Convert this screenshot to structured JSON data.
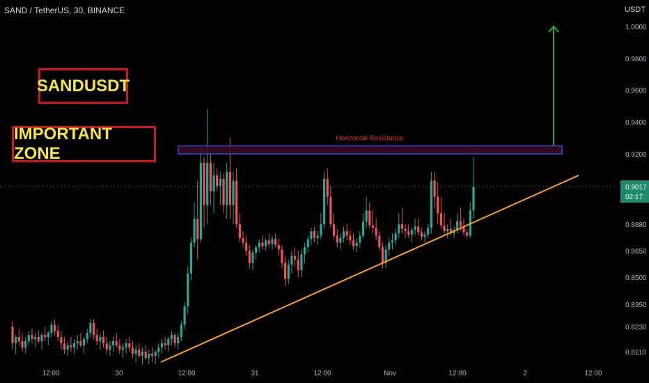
{
  "header": {
    "title": "SAND / TetherUS, 30, BINANCE"
  },
  "labels": {
    "box1": "SANDUSDT",
    "box2": "IMPORTANT ZONE"
  },
  "colors": {
    "background": "#000000",
    "up": "#26a69a",
    "down": "#ef5350",
    "trendline": "#ff9f1c",
    "resistance_border": "#3a4bd8",
    "resistance_fill": "#3a0c22",
    "resistance_text": "#e03030",
    "arrow": "#19c81e",
    "label_border": "#d4141b",
    "label_text": "#f4e542",
    "price_badge": "#1e8a6c"
  },
  "chart_data": {
    "type": "candlestick",
    "title": "SAND / TetherUS, 30, BINANCE",
    "ylabel": "USDT",
    "yticks": [
      "1.0000",
      "0.9800",
      "0.9600",
      "0.9400",
      "0.9200",
      "0.9017",
      "0.8880",
      "0.8650",
      "0.8500",
      "0.8350",
      "0.8230",
      "0.8110"
    ],
    "xticks": [
      "12:00",
      "30",
      "12:00",
      "31",
      "12:00",
      "Nov",
      "12:00",
      "2",
      "12:00"
    ],
    "current_price": {
      "value": "0.9017",
      "countdown": "02:17"
    },
    "annotations": {
      "resistance_zone": {
        "label": "Horizontal Resistance",
        "low": 0.92,
        "high": 0.925
      },
      "trendline": {
        "from": 0.806,
        "to": 0.908
      },
      "arrow_target": 1.0
    },
    "candles": [
      [
        0.823,
        0.826,
        0.812,
        0.815
      ],
      [
        0.815,
        0.819,
        0.81,
        0.818
      ],
      [
        0.818,
        0.822,
        0.814,
        0.816
      ],
      [
        0.816,
        0.82,
        0.811,
        0.813
      ],
      [
        0.813,
        0.818,
        0.81,
        0.816
      ],
      [
        0.816,
        0.821,
        0.814,
        0.819
      ],
      [
        0.819,
        0.822,
        0.815,
        0.817
      ],
      [
        0.817,
        0.82,
        0.813,
        0.818
      ],
      [
        0.818,
        0.821,
        0.815,
        0.816
      ],
      [
        0.816,
        0.82,
        0.812,
        0.819
      ],
      [
        0.819,
        0.823,
        0.816,
        0.818
      ],
      [
        0.818,
        0.821,
        0.814,
        0.82
      ],
      [
        0.82,
        0.826,
        0.818,
        0.824
      ],
      [
        0.824,
        0.827,
        0.819,
        0.821
      ],
      [
        0.821,
        0.824,
        0.816,
        0.818
      ],
      [
        0.818,
        0.821,
        0.812,
        0.815
      ],
      [
        0.815,
        0.818,
        0.81,
        0.812
      ],
      [
        0.812,
        0.816,
        0.809,
        0.814
      ],
      [
        0.814,
        0.818,
        0.811,
        0.813
      ],
      [
        0.813,
        0.817,
        0.81,
        0.815
      ],
      [
        0.815,
        0.819,
        0.812,
        0.816
      ],
      [
        0.816,
        0.82,
        0.813,
        0.814
      ],
      [
        0.814,
        0.818,
        0.81,
        0.817
      ],
      [
        0.817,
        0.822,
        0.815,
        0.82
      ],
      [
        0.82,
        0.827,
        0.818,
        0.825
      ],
      [
        0.825,
        0.827,
        0.817,
        0.819
      ],
      [
        0.819,
        0.822,
        0.814,
        0.816
      ],
      [
        0.816,
        0.82,
        0.812,
        0.818
      ],
      [
        0.818,
        0.821,
        0.813,
        0.815
      ],
      [
        0.815,
        0.818,
        0.81,
        0.812
      ],
      [
        0.812,
        0.816,
        0.809,
        0.814
      ],
      [
        0.814,
        0.818,
        0.811,
        0.816
      ],
      [
        0.816,
        0.82,
        0.813,
        0.814
      ],
      [
        0.814,
        0.817,
        0.81,
        0.812
      ],
      [
        0.812,
        0.815,
        0.808,
        0.813
      ],
      [
        0.813,
        0.817,
        0.81,
        0.815
      ],
      [
        0.815,
        0.818,
        0.811,
        0.813
      ],
      [
        0.813,
        0.816,
        0.808,
        0.81
      ],
      [
        0.81,
        0.814,
        0.806,
        0.812
      ],
      [
        0.812,
        0.815,
        0.808,
        0.809
      ],
      [
        0.809,
        0.813,
        0.805,
        0.811
      ],
      [
        0.811,
        0.814,
        0.807,
        0.808
      ],
      [
        0.808,
        0.812,
        0.805,
        0.81
      ],
      [
        0.81,
        0.813,
        0.806,
        0.809
      ],
      [
        0.809,
        0.812,
        0.805,
        0.811
      ],
      [
        0.811,
        0.815,
        0.808,
        0.813
      ],
      [
        0.813,
        0.817,
        0.81,
        0.815
      ],
      [
        0.815,
        0.818,
        0.812,
        0.814
      ],
      [
        0.814,
        0.818,
        0.811,
        0.817
      ],
      [
        0.817,
        0.821,
        0.814,
        0.819
      ],
      [
        0.819,
        0.82,
        0.813,
        0.815
      ],
      [
        0.815,
        0.82,
        0.812,
        0.818
      ],
      [
        0.818,
        0.826,
        0.816,
        0.824
      ],
      [
        0.824,
        0.836,
        0.822,
        0.834
      ],
      [
        0.834,
        0.856,
        0.83,
        0.852
      ],
      [
        0.852,
        0.876,
        0.848,
        0.872
      ],
      [
        0.872,
        0.896,
        0.868,
        0.89
      ],
      [
        0.89,
        0.905,
        0.86,
        0.875
      ],
      [
        0.875,
        0.925,
        0.872,
        0.915
      ],
      [
        0.915,
        0.918,
        0.885,
        0.895
      ],
      [
        0.895,
        0.948,
        0.888,
        0.915
      ],
      [
        0.915,
        0.92,
        0.895,
        0.9
      ],
      [
        0.9,
        0.915,
        0.892,
        0.908
      ],
      [
        0.908,
        0.912,
        0.9,
        0.902
      ],
      [
        0.902,
        0.91,
        0.895,
        0.906
      ],
      [
        0.906,
        0.909,
        0.892,
        0.895
      ],
      [
        0.895,
        0.915,
        0.89,
        0.91
      ],
      [
        0.91,
        0.93,
        0.89,
        0.895
      ],
      [
        0.895,
        0.91,
        0.888,
        0.905
      ],
      [
        0.905,
        0.912,
        0.885,
        0.888
      ],
      [
        0.888,
        0.892,
        0.872,
        0.876
      ],
      [
        0.876,
        0.882,
        0.868,
        0.872
      ],
      [
        0.872,
        0.878,
        0.862,
        0.865
      ],
      [
        0.865,
        0.87,
        0.855,
        0.858
      ],
      [
        0.858,
        0.866,
        0.854,
        0.864
      ],
      [
        0.864,
        0.87,
        0.86,
        0.868
      ],
      [
        0.868,
        0.875,
        0.864,
        0.872
      ],
      [
        0.872,
        0.878,
        0.866,
        0.869
      ],
      [
        0.869,
        0.876,
        0.865,
        0.874
      ],
      [
        0.874,
        0.88,
        0.868,
        0.871
      ],
      [
        0.871,
        0.878,
        0.866,
        0.875
      ],
      [
        0.875,
        0.88,
        0.868,
        0.87
      ],
      [
        0.87,
        0.876,
        0.862,
        0.866
      ],
      [
        0.866,
        0.87,
        0.855,
        0.858
      ],
      [
        0.858,
        0.862,
        0.845,
        0.849
      ],
      [
        0.849,
        0.86,
        0.846,
        0.857
      ],
      [
        0.857,
        0.865,
        0.852,
        0.862
      ],
      [
        0.862,
        0.868,
        0.856,
        0.86
      ],
      [
        0.86,
        0.865,
        0.85,
        0.854
      ],
      [
        0.854,
        0.866,
        0.85,
        0.863
      ],
      [
        0.863,
        0.872,
        0.858,
        0.868
      ],
      [
        0.868,
        0.878,
        0.864,
        0.875
      ],
      [
        0.875,
        0.885,
        0.87,
        0.882
      ],
      [
        0.882,
        0.886,
        0.872,
        0.876
      ],
      [
        0.876,
        0.882,
        0.87,
        0.878
      ],
      [
        0.878,
        0.892,
        0.875,
        0.888
      ],
      [
        0.888,
        0.91,
        0.884,
        0.906
      ],
      [
        0.906,
        0.912,
        0.895,
        0.898
      ],
      [
        0.898,
        0.902,
        0.885,
        0.888
      ],
      [
        0.888,
        0.892,
        0.875,
        0.878
      ],
      [
        0.878,
        0.884,
        0.868,
        0.872
      ],
      [
        0.872,
        0.88,
        0.866,
        0.876
      ],
      [
        0.876,
        0.886,
        0.872,
        0.882
      ],
      [
        0.882,
        0.888,
        0.874,
        0.878
      ],
      [
        0.878,
        0.883,
        0.87,
        0.874
      ],
      [
        0.874,
        0.88,
        0.866,
        0.869
      ],
      [
        0.869,
        0.876,
        0.864,
        0.872
      ],
      [
        0.872,
        0.882,
        0.868,
        0.878
      ],
      [
        0.878,
        0.892,
        0.876,
        0.889
      ],
      [
        0.889,
        0.898,
        0.884,
        0.893
      ],
      [
        0.893,
        0.896,
        0.884,
        0.887
      ],
      [
        0.887,
        0.893,
        0.88,
        0.885
      ],
      [
        0.885,
        0.89,
        0.874,
        0.878
      ],
      [
        0.878,
        0.882,
        0.865,
        0.868
      ],
      [
        0.868,
        0.872,
        0.855,
        0.858
      ],
      [
        0.858,
        0.87,
        0.855,
        0.866
      ],
      [
        0.866,
        0.876,
        0.862,
        0.872
      ],
      [
        0.872,
        0.88,
        0.866,
        0.874
      ],
      [
        0.874,
        0.884,
        0.87,
        0.88
      ],
      [
        0.88,
        0.892,
        0.876,
        0.888
      ],
      [
        0.888,
        0.894,
        0.88,
        0.884
      ],
      [
        0.884,
        0.888,
        0.876,
        0.882
      ],
      [
        0.882,
        0.888,
        0.876,
        0.879
      ],
      [
        0.879,
        0.885,
        0.872,
        0.883
      ],
      [
        0.883,
        0.89,
        0.878,
        0.886
      ],
      [
        0.886,
        0.89,
        0.878,
        0.881
      ],
      [
        0.881,
        0.885,
        0.874,
        0.877
      ],
      [
        0.877,
        0.882,
        0.872,
        0.879
      ],
      [
        0.879,
        0.888,
        0.876,
        0.885
      ],
      [
        0.885,
        0.91,
        0.88,
        0.905
      ],
      [
        0.905,
        0.91,
        0.894,
        0.898
      ],
      [
        0.898,
        0.904,
        0.888,
        0.892
      ],
      [
        0.892,
        0.898,
        0.884,
        0.887
      ],
      [
        0.887,
        0.892,
        0.878,
        0.882
      ],
      [
        0.882,
        0.888,
        0.876,
        0.884
      ],
      [
        0.884,
        0.89,
        0.878,
        0.88
      ],
      [
        0.88,
        0.886,
        0.876,
        0.883
      ],
      [
        0.883,
        0.892,
        0.88,
        0.889
      ],
      [
        0.889,
        0.894,
        0.882,
        0.886
      ],
      [
        0.886,
        0.89,
        0.878,
        0.881
      ],
      [
        0.881,
        0.884,
        0.876,
        0.878
      ],
      [
        0.878,
        0.896,
        0.876,
        0.893
      ],
      [
        0.893,
        0.918,
        0.89,
        0.9017
      ]
    ]
  }
}
